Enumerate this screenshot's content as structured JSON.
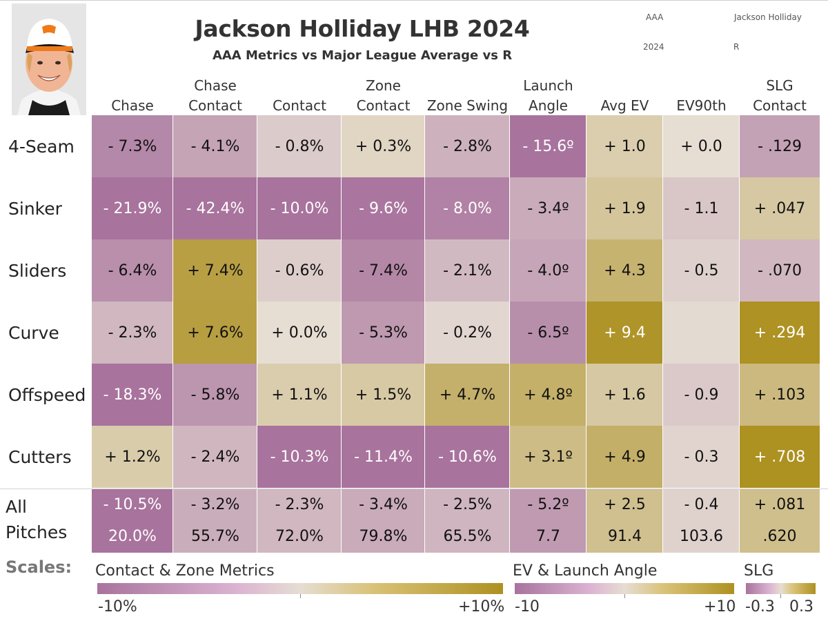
{
  "header": {
    "title": "Jackson Holliday LHB 2024",
    "subtitle": "AAA Metrics vs Major League Average vs R",
    "meta_level": "AAA",
    "meta_player": "Jackson Holliday",
    "meta_year": "2024",
    "meta_hand": "R"
  },
  "chart_data": {
    "type": "heatmap",
    "title": "Jackson Holliday LHB 2024",
    "subtitle": "AAA Metrics vs Major League Average vs R",
    "columns": [
      {
        "line1": "",
        "line2": "Chase",
        "scale": "contact"
      },
      {
        "line1": "Chase",
        "line2": "Contact",
        "scale": "contact"
      },
      {
        "line1": "",
        "line2": "Contact",
        "scale": "contact"
      },
      {
        "line1": "Zone",
        "line2": "Contact",
        "scale": "contact"
      },
      {
        "line1": "",
        "line2": "Zone Swing",
        "scale": "contact"
      },
      {
        "line1": "Launch",
        "line2": "Angle",
        "scale": "ev"
      },
      {
        "line1": "",
        "line2": "Avg EV",
        "scale": "ev"
      },
      {
        "line1": "",
        "line2": "EV90th",
        "scale": "ev"
      },
      {
        "line1": "SLG",
        "line2": "Contact",
        "scale": "slg"
      }
    ],
    "rows": [
      {
        "label": "4-Seam",
        "values": [
          -7.3,
          -4.1,
          -0.8,
          0.3,
          -2.8,
          -15.6,
          1.0,
          0.0,
          -0.129
        ],
        "text": [
          "- 7.3%",
          "- 4.1%",
          "- 0.8%",
          "+ 0.3%",
          "- 2.8%",
          "- 15.6º",
          "+ 1.0",
          "+ 0.0",
          "- .129"
        ]
      },
      {
        "label": "Sinker",
        "values": [
          -21.9,
          -42.4,
          -10.0,
          -9.6,
          -8.0,
          -3.4,
          1.9,
          -1.1,
          0.047
        ],
        "text": [
          "- 21.9%",
          "- 42.4%",
          "- 10.0%",
          "- 9.6%",
          "- 8.0%",
          "- 3.4º",
          "+ 1.9",
          "- 1.1",
          "+ .047"
        ]
      },
      {
        "label": "Sliders",
        "values": [
          -6.4,
          7.4,
          -0.6,
          -7.4,
          -2.1,
          -4.0,
          4.3,
          -0.5,
          -0.07
        ],
        "text": [
          "- 6.4%",
          "+ 7.4%",
          "- 0.6%",
          "- 7.4%",
          "- 2.1%",
          "- 4.0º",
          "+ 4.3",
          "- 0.5",
          "- .070"
        ]
      },
      {
        "label": "Curve",
        "values": [
          -2.3,
          7.6,
          0.0,
          -5.3,
          -0.2,
          -6.5,
          9.4,
          null,
          0.294
        ],
        "text": [
          "- 2.3%",
          "+ 7.6%",
          "+ 0.0%",
          "- 5.3%",
          "- 0.2%",
          "- 6.5º",
          "+ 9.4",
          "",
          "+ .294"
        ]
      },
      {
        "label": "Offspeed",
        "values": [
          -18.3,
          -5.8,
          1.1,
          1.5,
          4.7,
          4.8,
          1.6,
          -0.9,
          0.103
        ],
        "text": [
          "- 18.3%",
          "- 5.8%",
          "+ 1.1%",
          "+ 1.5%",
          "+ 4.7%",
          "+ 4.8º",
          "+ 1.6",
          "- 0.9",
          "+ .103"
        ]
      },
      {
        "label": "Cutters",
        "values": [
          1.2,
          -2.4,
          -10.3,
          -11.4,
          -10.6,
          3.1,
          4.9,
          -0.3,
          0.708
        ],
        "text": [
          "+ 1.2%",
          "- 2.4%",
          "- 10.3%",
          "- 11.4%",
          "- 10.6%",
          "+ 3.1º",
          "+ 4.9",
          "- 0.3",
          "+ .708"
        ]
      }
    ],
    "all_pitches": {
      "label_line1": "All",
      "label_line2": "Pitches",
      "diff_values": [
        -10.5,
        -3.2,
        -2.3,
        -3.4,
        -2.5,
        -5.2,
        2.5,
        -0.4,
        0.081
      ],
      "diff_text": [
        "- 10.5%",
        "- 3.2%",
        "- 2.3%",
        "- 3.4%",
        "- 2.5%",
        "- 5.2º",
        "+ 2.5",
        "- 0.4",
        "+ .081"
      ],
      "totals_text": [
        "20.0%",
        "55.7%",
        "72.0%",
        "79.8%",
        "65.5%",
        "7.7",
        "91.4",
        "103.6",
        ".620"
      ]
    },
    "scales": {
      "contact": {
        "title": "Contact & Zone Metrics",
        "min": -10,
        "max": 10,
        "min_label": "-10%",
        "max_label": "+10%"
      },
      "ev": {
        "title": "EV & Launch Angle",
        "min": -10,
        "max": 10,
        "min_label": "-10",
        "max_label": "+10"
      },
      "slg": {
        "title": "SLG",
        "min": -0.3,
        "max": 0.3,
        "min_label": "-0.3",
        "max_label": "0.3"
      }
    },
    "colors": {
      "negative": "#a8739d",
      "neutral": "#e6ddd3",
      "positive": "#ad9121",
      "empty": "#e3dad2"
    }
  },
  "legend": {
    "scales_label": "Scales:"
  }
}
